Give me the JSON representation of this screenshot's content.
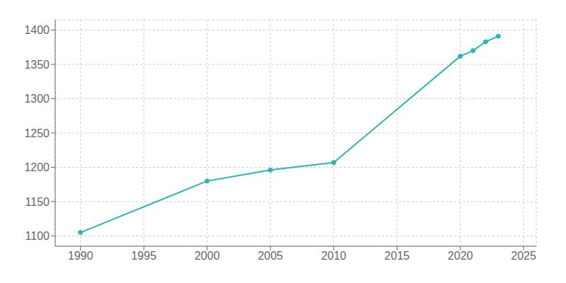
{
  "chart_data": {
    "type": "line",
    "x": [
      1990,
      2000,
      2005,
      2010,
      2020,
      2021,
      2022,
      2023
    ],
    "values": [
      1105,
      1180,
      1196,
      1207,
      1362,
      1370,
      1383,
      1391
    ],
    "color": "#2ab5b5",
    "marker": "circle",
    "xlim": [
      1988,
      2026
    ],
    "ylim": [
      1085,
      1415
    ],
    "xticks": [
      1990,
      1995,
      2000,
      2005,
      2010,
      2015,
      2020,
      2025
    ],
    "yticks": [
      1100,
      1150,
      1200,
      1250,
      1300,
      1350,
      1400
    ],
    "grid": true
  }
}
